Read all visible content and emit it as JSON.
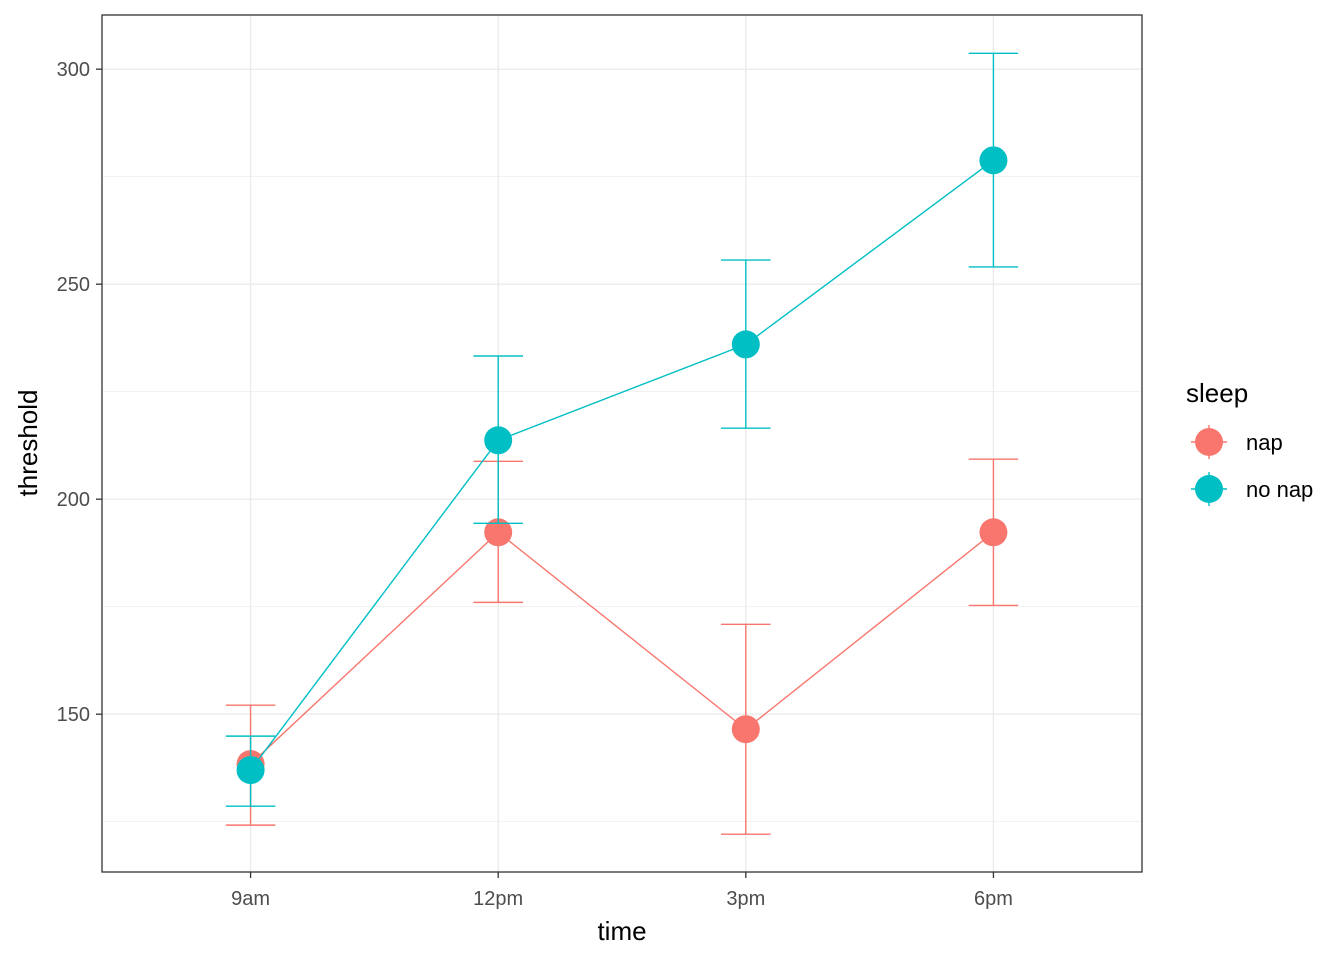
{
  "chart_data": {
    "type": "line",
    "title": "",
    "xlabel": "time",
    "ylabel": "threshold",
    "categories": [
      "9am",
      "12pm",
      "3pm",
      "6pm"
    ],
    "ylim": [
      113.3,
      312.6
    ],
    "yticks": [
      150,
      200,
      250,
      300
    ],
    "yminor": [
      125,
      175,
      225,
      275
    ],
    "grid": true,
    "legend": {
      "title": "sleep",
      "position": "right"
    },
    "series": [
      {
        "name": "nap",
        "color": "#F8766D",
        "values": [
          138.4,
          192.3,
          146.5,
          192.3
        ],
        "lower": [
          124.2,
          176.0,
          122.1,
          175.3
        ],
        "upper": [
          152.1,
          208.8,
          170.9,
          209.3
        ]
      },
      {
        "name": "no nap",
        "color": "#00BFC4",
        "values": [
          137.0,
          213.7,
          236.0,
          278.8
        ],
        "lower": [
          128.6,
          194.4,
          216.5,
          254.0
        ],
        "upper": [
          144.9,
          233.3,
          255.6,
          303.7
        ]
      }
    ]
  }
}
